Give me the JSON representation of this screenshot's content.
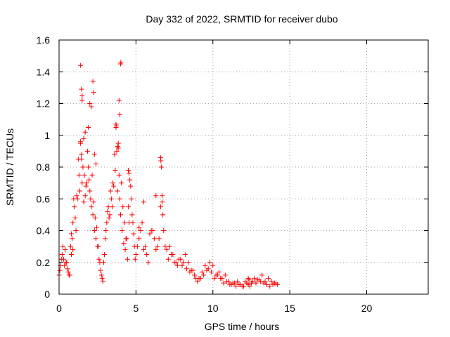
{
  "chart_data": {
    "type": "scatter",
    "title": "Day 332 of 2022, SRMTID for receiver dubo",
    "xlabel": "GPS time / hours",
    "ylabel": "SRMTID / TECUs",
    "xlim": [
      0,
      24
    ],
    "ylim": [
      0,
      1.6
    ],
    "xticks": [
      0,
      5,
      10,
      15,
      20
    ],
    "xtick_labels": [
      "0",
      "5",
      "10",
      "15",
      "20"
    ],
    "yticks": [
      0,
      0.2,
      0.4,
      0.6,
      0.8,
      1.0,
      1.2,
      1.4,
      1.6
    ],
    "ytick_labels": [
      "0",
      "0.2",
      "0.4",
      "0.6",
      "0.8",
      "1",
      "1.2",
      "1.4",
      "1.6"
    ],
    "grid": true,
    "marker": "+",
    "series": [
      {
        "name": "SRMTID",
        "color": "#ff0000",
        "x": [
          0.0,
          0.1,
          0.2,
          0.3,
          0.4,
          0.5,
          0.6,
          0.7,
          0.8,
          0.9,
          1.0,
          1.1,
          1.2,
          1.3,
          1.4,
          1.45,
          1.5,
          1.6,
          1.7,
          1.8,
          1.9,
          2.0,
          2.1,
          2.2,
          2.3,
          2.4,
          2.5,
          2.6,
          2.7,
          2.8,
          2.9,
          3.0,
          3.1,
          3.2,
          3.3,
          3.4,
          3.5,
          3.6,
          3.7,
          3.75,
          3.8,
          3.9,
          3.95,
          4.0,
          4.1,
          4.2,
          4.3,
          4.4,
          4.5,
          4.6,
          4.7,
          4.8,
          4.9,
          5.0,
          5.2,
          5.4,
          5.6,
          5.8,
          6.0,
          6.2,
          6.4,
          6.6,
          6.65,
          6.7,
          6.8,
          7.0,
          7.2,
          7.4,
          7.6,
          7.8,
          8.0,
          8.2,
          8.4,
          8.6,
          8.8,
          9.0,
          9.2,
          9.4,
          9.6,
          9.8,
          10.0,
          10.2,
          10.4,
          10.6,
          10.8,
          11.0,
          11.2,
          11.4,
          11.6,
          11.8,
          12.0,
          12.2,
          12.4,
          12.6,
          12.8,
          13.0,
          13.2,
          13.4,
          13.6,
          13.8,
          14.0,
          14.2,
          0.05,
          0.15,
          0.25,
          0.35,
          0.45,
          0.55,
          0.65,
          0.75,
          0.85,
          0.95,
          1.05,
          1.15,
          1.25,
          1.35,
          1.55,
          1.65,
          1.75,
          1.85,
          1.95,
          2.05,
          2.15,
          2.25,
          2.35,
          2.45,
          2.55,
          2.65,
          2.75,
          2.85,
          2.95,
          3.05,
          3.15,
          3.25,
          3.35,
          3.45,
          3.55,
          3.65,
          3.85,
          4.05,
          4.15,
          4.25,
          4.35,
          4.45,
          4.55,
          4.65,
          4.75,
          4.85,
          4.95,
          5.1,
          5.3,
          5.5,
          5.7,
          5.9,
          6.1,
          6.3,
          6.5,
          6.75,
          6.9,
          7.1,
          7.3,
          7.5,
          7.7,
          7.9,
          8.1,
          8.3,
          8.5,
          8.7,
          8.9,
          9.1,
          9.3,
          9.5,
          9.7,
          9.9,
          10.1,
          10.3,
          10.5,
          10.7,
          10.9,
          11.1,
          11.3,
          11.5,
          11.7,
          11.9,
          12.1,
          12.3,
          12.5,
          12.7,
          12.9,
          13.1,
          13.3,
          13.5,
          13.7,
          13.9,
          14.1,
          1.4,
          1.45,
          1.5,
          2.2,
          2.25,
          3.7,
          3.72,
          4.0,
          4.02,
          1.5,
          2.0,
          2.1,
          1.9,
          1.7,
          1.6,
          3.8,
          3.85,
          6.6,
          6.62,
          4.5,
          4.55,
          2.3,
          2.4,
          1.4,
          1.45,
          3.9,
          3.95,
          0.8,
          0.9,
          5.2,
          5.5,
          6.3,
          6.7,
          12.3,
          12.35
        ],
        "y": [
          0.12,
          0.18,
          0.25,
          0.22,
          0.28,
          0.2,
          0.14,
          0.12,
          0.25,
          0.45,
          0.55,
          0.4,
          0.6,
          0.75,
          0.95,
          0.85,
          0.7,
          0.58,
          0.62,
          0.7,
          0.8,
          0.65,
          0.55,
          0.5,
          0.4,
          0.35,
          0.3,
          0.22,
          0.15,
          0.1,
          0.2,
          0.35,
          0.45,
          0.55,
          0.5,
          0.6,
          0.7,
          0.88,
          1.05,
          0.9,
          0.65,
          0.75,
          0.6,
          0.5,
          0.4,
          0.32,
          0.28,
          0.35,
          0.55,
          0.72,
          0.6,
          0.45,
          0.3,
          0.25,
          0.35,
          0.45,
          0.3,
          0.2,
          0.4,
          0.35,
          0.3,
          0.55,
          0.8,
          0.62,
          0.4,
          0.28,
          0.3,
          0.25,
          0.2,
          0.22,
          0.18,
          0.25,
          0.2,
          0.15,
          0.12,
          0.08,
          0.1,
          0.12,
          0.15,
          0.2,
          0.18,
          0.12,
          0.14,
          0.1,
          0.12,
          0.08,
          0.06,
          0.07,
          0.08,
          0.06,
          0.05,
          0.07,
          0.05,
          0.08,
          0.07,
          0.09,
          0.12,
          0.08,
          0.1,
          0.08,
          0.07,
          0.06,
          0.15,
          0.22,
          0.3,
          0.18,
          0.2,
          0.16,
          0.12,
          0.3,
          0.35,
          0.6,
          0.48,
          0.62,
          0.85,
          0.65,
          0.8,
          0.75,
          0.68,
          0.9,
          0.72,
          0.6,
          0.75,
          0.58,
          0.48,
          0.42,
          0.3,
          0.2,
          0.12,
          0.08,
          0.25,
          0.4,
          0.52,
          0.48,
          0.65,
          0.55,
          0.68,
          0.78,
          0.95,
          0.7,
          0.55,
          0.45,
          0.35,
          0.22,
          0.45,
          0.68,
          0.5,
          0.38,
          0.22,
          0.3,
          0.4,
          0.28,
          0.25,
          0.38,
          0.4,
          0.28,
          0.35,
          0.5,
          0.3,
          0.22,
          0.25,
          0.2,
          0.18,
          0.22,
          0.2,
          0.16,
          0.14,
          0.15,
          0.1,
          0.1,
          0.14,
          0.18,
          0.16,
          0.14,
          0.1,
          0.12,
          0.1,
          0.07,
          0.08,
          0.06,
          0.07,
          0.05,
          0.06,
          0.05,
          0.08,
          0.06,
          0.07,
          0.1,
          0.09,
          0.08,
          0.07,
          0.06,
          0.05,
          0.06,
          0.07,
          1.44,
          1.29,
          1.22,
          1.34,
          1.27,
          1.07,
          1.06,
          1.45,
          1.46,
          1.25,
          1.2,
          1.18,
          1.05,
          1.02,
          0.98,
          0.93,
          0.92,
          0.86,
          0.84,
          0.78,
          0.76,
          0.88,
          0.82,
          0.96,
          0.88,
          1.22,
          1.13,
          0.38,
          0.28,
          0.42,
          0.58,
          0.62,
          0.58,
          0.1,
          0.09
        ]
      }
    ]
  }
}
